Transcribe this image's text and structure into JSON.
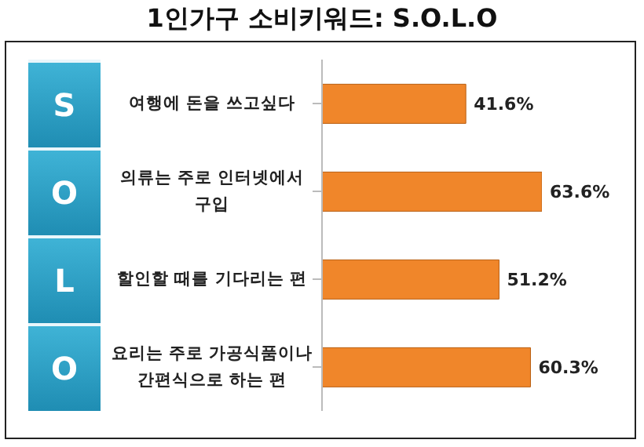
{
  "chart_data": {
    "type": "bar",
    "orientation": "horizontal",
    "title": "1인가구 소비키워드: S.O.L.O",
    "tick_labels": "y",
    "categories": [
      "여행에 돈을 쓰고싶다",
      "의류는 주로 인터넷에서 구입",
      "할인할 때를 기다리는 편",
      "요리는 주로 가공식품이나 간편식으로 하는 편"
    ],
    "values": [
      41.6,
      63.6,
      51.2,
      60.3
    ],
    "value_labels": [
      "41.6%",
      "63.6%",
      "51.2%",
      "60.3%"
    ],
    "color": "#f0862a",
    "annotations": [
      "S",
      "O",
      "L",
      "O"
    ],
    "legend": false,
    "grid": false
  }
}
